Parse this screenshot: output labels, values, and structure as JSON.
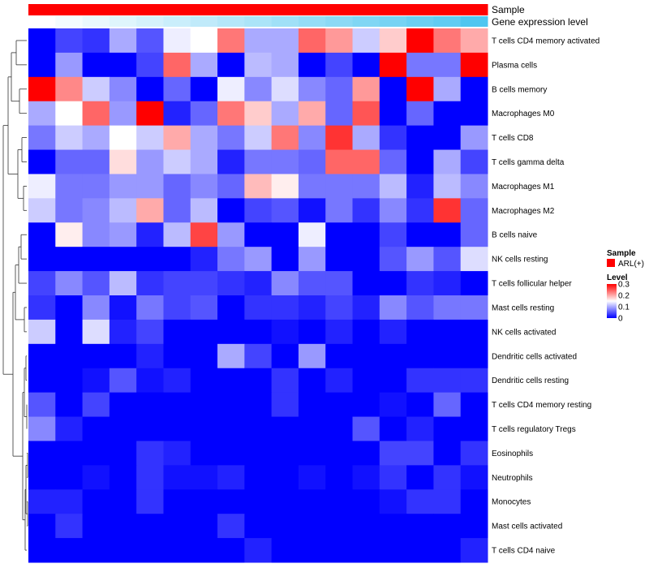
{
  "chart_data": {
    "type": "heatmap",
    "annotation_tracks": [
      {
        "name": "Sample",
        "color": "#ff0000"
      },
      {
        "name": "Gene expression level",
        "gradient": [
          "#ffffff",
          "#4fc6f0"
        ]
      }
    ],
    "rows": [
      "T cells CD4 memory activated",
      "Plasma cells",
      "B cells memory",
      "Macrophages M0",
      "T cells CD8",
      "T cells gamma delta",
      "Macrophages M1",
      "Macrophages M2",
      "B cells naive",
      "NK cells resting",
      "T cells follicular helper",
      "Mast cells resting",
      "NK cells activated",
      "Dendritic cells activated",
      "Dendritic cells resting",
      "T cells CD4 memory resting",
      "T cells regulatory  Tregs",
      "Eosinophils",
      "Neutrophils",
      "Monocytes",
      "Mast cells activated",
      "T cells CD4 naive"
    ],
    "n_columns": 17,
    "values": [
      [
        0.0,
        0.04,
        0.03,
        0.1,
        0.05,
        0.14,
        0.15,
        0.23,
        0.1,
        0.1,
        0.24,
        0.21,
        0.12,
        0.18,
        0.3,
        0.23,
        0.2
      ],
      [
        0.0,
        0.09,
        0.0,
        0.0,
        0.04,
        0.24,
        0.1,
        0.0,
        0.11,
        0.1,
        0.0,
        0.04,
        0.0,
        0.3,
        0.07,
        0.07,
        0.3
      ],
      [
        0.3,
        0.22,
        0.12,
        0.08,
        0.0,
        0.06,
        0.0,
        0.14,
        0.08,
        0.13,
        0.08,
        0.06,
        0.21,
        0.0,
        0.3,
        0.1,
        0.0
      ],
      [
        0.1,
        0.15,
        0.24,
        0.09,
        0.3,
        0.02,
        0.06,
        0.23,
        0.18,
        0.1,
        0.2,
        0.06,
        0.25,
        0.0,
        0.06,
        0.0,
        0.0
      ],
      [
        0.07,
        0.12,
        0.1,
        0.15,
        0.12,
        0.2,
        0.1,
        0.07,
        0.12,
        0.23,
        0.08,
        0.27,
        0.1,
        0.03,
        0.0,
        0.0,
        0.09
      ],
      [
        0.0,
        0.06,
        0.06,
        0.17,
        0.09,
        0.12,
        0.1,
        0.02,
        0.07,
        0.07,
        0.06,
        0.24,
        0.24,
        0.06,
        0.0,
        0.1,
        0.04
      ],
      [
        0.14,
        0.07,
        0.07,
        0.09,
        0.09,
        0.06,
        0.08,
        0.06,
        0.19,
        0.16,
        0.07,
        0.07,
        0.07,
        0.11,
        0.02,
        0.11,
        0.08
      ],
      [
        0.12,
        0.07,
        0.08,
        0.11,
        0.2,
        0.06,
        0.11,
        0.0,
        0.04,
        0.05,
        0.01,
        0.07,
        0.03,
        0.08,
        0.03,
        0.27,
        0.06
      ],
      [
        0.0,
        0.16,
        0.08,
        0.09,
        0.02,
        0.11,
        0.26,
        0.09,
        0.0,
        0.0,
        0.14,
        0.0,
        0.0,
        0.04,
        0.0,
        0.0,
        0.06
      ],
      [
        0.0,
        0.0,
        0.0,
        0.0,
        0.0,
        0.0,
        0.02,
        0.07,
        0.09,
        0.0,
        0.09,
        0.0,
        0.0,
        0.05,
        0.09,
        0.05,
        0.13
      ],
      [
        0.04,
        0.08,
        0.05,
        0.11,
        0.03,
        0.04,
        0.04,
        0.03,
        0.02,
        0.08,
        0.05,
        0.05,
        0.0,
        0.0,
        0.03,
        0.02,
        0.0
      ],
      [
        0.03,
        0.0,
        0.08,
        0.01,
        0.07,
        0.04,
        0.05,
        0.0,
        0.03,
        0.03,
        0.02,
        0.04,
        0.02,
        0.08,
        0.05,
        0.07,
        0.07
      ],
      [
        0.12,
        0.0,
        0.13,
        0.02,
        0.04,
        0.0,
        0.0,
        0.0,
        0.0,
        0.01,
        0.0,
        0.02,
        0.0,
        0.02,
        0.0,
        0.0,
        0.0
      ],
      [
        0.0,
        0.0,
        0.0,
        0.0,
        0.02,
        0.0,
        0.0,
        0.1,
        0.04,
        0.0,
        0.09,
        0.0,
        0.0,
        0.0,
        0.0,
        0.0,
        0.0
      ],
      [
        0.0,
        0.0,
        0.01,
        0.05,
        0.01,
        0.02,
        0.0,
        0.0,
        0.0,
        0.03,
        0.0,
        0.02,
        0.0,
        0.0,
        0.03,
        0.03,
        0.03
      ],
      [
        0.05,
        0.0,
        0.04,
        0.0,
        0.0,
        0.0,
        0.0,
        0.0,
        0.0,
        0.03,
        0.0,
        0.0,
        0.0,
        0.01,
        0.0,
        0.06,
        0.0
      ],
      [
        0.08,
        0.02,
        0.0,
        0.0,
        0.0,
        0.0,
        0.0,
        0.0,
        0.0,
        0.0,
        0.0,
        0.0,
        0.05,
        0.0,
        0.02,
        0.0,
        0.0
      ],
      [
        0.0,
        0.0,
        0.0,
        0.0,
        0.03,
        0.02,
        0.0,
        0.0,
        0.0,
        0.0,
        0.0,
        0.0,
        0.0,
        0.04,
        0.04,
        0.0,
        0.03
      ],
      [
        0.0,
        0.0,
        0.01,
        0.0,
        0.03,
        0.01,
        0.01,
        0.02,
        0.0,
        0.0,
        0.01,
        0.0,
        0.01,
        0.03,
        0.0,
        0.03,
        0.01
      ],
      [
        0.02,
        0.02,
        0.0,
        0.0,
        0.03,
        0.0,
        0.0,
        0.0,
        0.0,
        0.0,
        0.0,
        0.0,
        0.0,
        0.01,
        0.03,
        0.03,
        0.0
      ],
      [
        0.0,
        0.03,
        0.0,
        0.0,
        0.0,
        0.0,
        0.0,
        0.03,
        0.0,
        0.0,
        0.0,
        0.0,
        0.0,
        0.0,
        0.0,
        0.0,
        0.0
      ],
      [
        0.0,
        0.0,
        0.0,
        0.0,
        0.0,
        0.0,
        0.0,
        0.0,
        0.02,
        0.0,
        0.0,
        0.0,
        0.0,
        0.0,
        0.0,
        0.0,
        0.02
      ]
    ],
    "gene_expression_level": [
      0.0,
      0.06,
      0.12,
      0.18,
      0.24,
      0.3,
      0.36,
      0.42,
      0.48,
      0.54,
      0.6,
      0.66,
      0.72,
      0.78,
      0.84,
      0.9,
      1.0
    ],
    "legend": {
      "position": "right",
      "sample_title": "Sample",
      "sample_entry": "ARL(+)",
      "level_title": "Level",
      "level_ticks": [
        "0.3",
        "0.2",
        "0.1",
        "0"
      ],
      "level_range": [
        0,
        0.3
      ],
      "colors": {
        "low": "#0000ff",
        "mid": "#ffffff",
        "high": "#ff0000"
      }
    }
  }
}
